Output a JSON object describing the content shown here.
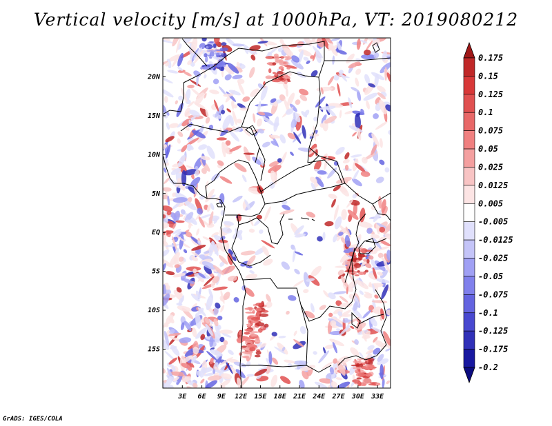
{
  "title": "Vertical velocity [m/s] at 1000hPa, VT: 2019080212",
  "credit": "GrADS: IGES/COLA",
  "map": {
    "lon_range": [
      0,
      35
    ],
    "lat_range": [
      -20,
      25
    ],
    "lat_ticks": [
      {
        "value": 20,
        "label": "20N"
      },
      {
        "value": 15,
        "label": "15N"
      },
      {
        "value": 10,
        "label": "10N"
      },
      {
        "value": 5,
        "label": "5N"
      },
      {
        "value": 0,
        "label": "EQ"
      },
      {
        "value": -5,
        "label": "5S"
      },
      {
        "value": -10,
        "label": "10S"
      },
      {
        "value": -15,
        "label": "15S"
      }
    ],
    "lon_ticks": [
      {
        "value": 3,
        "label": "3E"
      },
      {
        "value": 6,
        "label": "6E"
      },
      {
        "value": 9,
        "label": "9E"
      },
      {
        "value": 12,
        "label": "12E"
      },
      {
        "value": 15,
        "label": "15E"
      },
      {
        "value": 18,
        "label": "18E"
      },
      {
        "value": 21,
        "label": "21E"
      },
      {
        "value": 24,
        "label": "24E"
      },
      {
        "value": 27,
        "label": "27E"
      },
      {
        "value": 30,
        "label": "30E"
      },
      {
        "value": 33,
        "label": "33E"
      }
    ]
  },
  "colorbar": {
    "levels": [
      "0.175",
      "0.15",
      "0.125",
      "0.1",
      "0.075",
      "0.05",
      "0.025",
      "0.0125",
      "0.005",
      "-0.005",
      "-0.0125",
      "-0.025",
      "-0.05",
      "-0.075",
      "-0.1",
      "-0.125",
      "-0.175",
      "-0.2"
    ],
    "colors": [
      "#a01818",
      "#c02828",
      "#d83838",
      "#e05050",
      "#e86868",
      "#f08080",
      "#f4a0a0",
      "#f8c4c4",
      "#fce4e4",
      "#ffffff",
      "#e0e0fc",
      "#c4c4f8",
      "#a0a0f4",
      "#8080ec",
      "#6464e0",
      "#4848d0",
      "#3030b8",
      "#1818a0",
      "#0c0c80"
    ]
  }
}
